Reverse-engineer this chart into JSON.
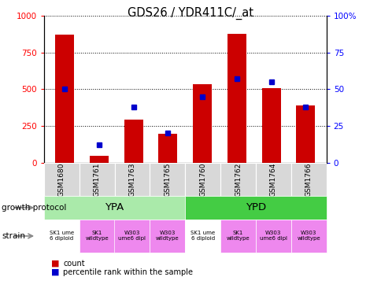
{
  "title": "GDS26 / YDR411C/_at",
  "samples": [
    "GSM1680",
    "GSM1761",
    "GSM1763",
    "GSM1765",
    "GSM1760",
    "GSM1762",
    "GSM1764",
    "GSM1766"
  ],
  "counts": [
    870,
    45,
    295,
    195,
    535,
    880,
    510,
    390
  ],
  "percentiles": [
    50,
    12,
    38,
    20,
    45,
    57,
    55,
    38
  ],
  "ylim_left": [
    0,
    1000
  ],
  "ylim_right": [
    0,
    100
  ],
  "yticks_left": [
    0,
    250,
    500,
    750,
    1000
  ],
  "yticks_right": [
    0,
    25,
    50,
    75,
    100
  ],
  "ytick_right_labels": [
    "0",
    "25",
    "50",
    "75",
    "100%"
  ],
  "bar_color": "#cc0000",
  "dot_color": "#0000cc",
  "ypa_color": "#aaeaaa",
  "ypd_color": "#44cc44",
  "strain_colors": [
    "#ffffff",
    "#ee88ee",
    "#ee88ee",
    "#ee88ee",
    "#ffffff",
    "#ee88ee",
    "#ee88ee",
    "#ee88ee"
  ],
  "strain_labels_line1": [
    "SK1 ume",
    "SK1",
    "W303",
    "W303",
    "SK1 ume",
    "SK1",
    "W303",
    "W303"
  ],
  "strain_labels_line2": [
    "6 diploid",
    "wildtype",
    "ume6 dipl",
    "wildtype",
    "6 diploid",
    "wildtype",
    "ume6 dipl",
    "wildtype"
  ],
  "xticklabel_bg": "#d8d8d8",
  "legend_square_size": 8,
  "arrow_color": "#888888"
}
